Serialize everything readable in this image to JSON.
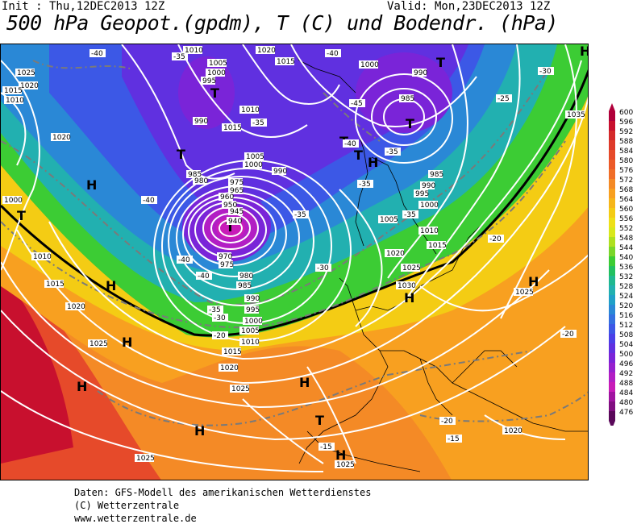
{
  "header": {
    "init": "Init : Thu,12DEC2013 12Z",
    "valid": "Valid: Mon,23DEC2013 12Z",
    "title": "500 hPa Geopot.(gpdm), T (C) und Bodendr. (hPa)"
  },
  "footer": {
    "line1": "Daten: GFS-Modell des amerikanischen Wetterdienstes",
    "line2": "(C) Wetterzentrale",
    "line3": "www.wetterzentrale.de"
  },
  "legend": {
    "labels": [
      "600",
      "596",
      "592",
      "588",
      "584",
      "580",
      "576",
      "572",
      "568",
      "564",
      "560",
      "556",
      "552",
      "548",
      "544",
      "540",
      "536",
      "532",
      "528",
      "524",
      "520",
      "516",
      "512",
      "508",
      "504",
      "500",
      "496",
      "492",
      "488",
      "484",
      "480",
      "476"
    ],
    "colors": [
      "#b0003a",
      "#c8102e",
      "#d42a2a",
      "#de3a2a",
      "#e64a2a",
      "#ec5a28",
      "#f06e28",
      "#f48a26",
      "#f8a020",
      "#f6b61a",
      "#f4cc14",
      "#eee018",
      "#d8e81c",
      "#aee020",
      "#7ad62a",
      "#3ccc34",
      "#22c060",
      "#20b890",
      "#22b0b0",
      "#20a0c8",
      "#2a88d6",
      "#3470e0",
      "#3c58e6",
      "#4a40e8",
      "#6030e0",
      "#7a24d8",
      "#9620ce",
      "#b21ec4",
      "#c81cb8",
      "#a014a0",
      "#800e80",
      "#5a085a"
    ]
  },
  "map": {
    "pressure_labels": [
      "1025",
      "1020",
      "1015",
      "1010",
      "1005",
      "1000",
      "995",
      "990",
      "985",
      "980",
      "975",
      "970",
      "965",
      "960",
      "955",
      "950",
      "945",
      "940",
      "1030",
      "1035"
    ],
    "temperature_labels": [
      "-40",
      "-35",
      "-45",
      "-30",
      "-25",
      "-20",
      "-15"
    ],
    "low_symbol": "T",
    "high_symbol": "H"
  }
}
